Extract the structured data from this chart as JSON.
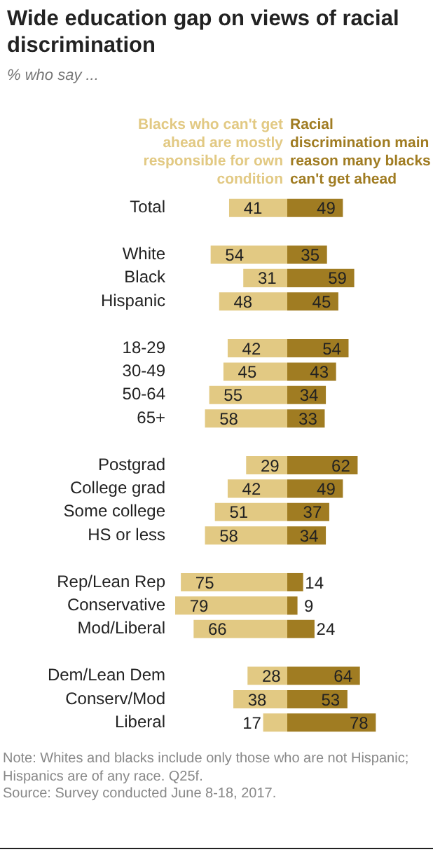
{
  "chart_data": [
    {
      "type": "bar",
      "orientation": "horizontal",
      "title": "Wide education gap on views of racial discrimination",
      "subtitle": "% who say ...",
      "categories": [
        "Total",
        null,
        "White",
        "Black",
        "Hispanic",
        null,
        "18-29",
        "30-49",
        "50-64",
        "65+",
        null,
        "Postgrad",
        "College grad",
        "Some college",
        "HS or less",
        null,
        "Rep/Lean Rep",
        "Conservative",
        "Mod/Liberal",
        null,
        "Dem/Lean Dem",
        "Conserv/Mod",
        "Liberal"
      ],
      "series": [
        {
          "name": "Blacks who can't get ahead are mostly responsible for own condition",
          "color": "#e2c983",
          "values": [
            41,
            null,
            54,
            31,
            48,
            null,
            42,
            45,
            55,
            58,
            null,
            29,
            42,
            51,
            58,
            null,
            75,
            79,
            66,
            null,
            28,
            38,
            17
          ]
        }
      ],
      "xlim": [
        80,
        0
      ],
      "tick_labels": "y",
      "legend": false,
      "data_labels": true,
      "annotations": [
        "Note: Whites and blacks include only those who are not Hispanic; Hispanics are of any race. Q25f.",
        "Source: Survey conducted June 8-18, 2017."
      ]
    },
    {
      "type": "bar",
      "orientation": "horizontal",
      "categories": [
        null,
        null,
        null,
        null,
        null,
        null,
        null,
        null,
        null,
        null,
        null,
        null,
        null,
        null,
        null,
        null,
        null,
        null,
        null,
        null,
        null,
        null,
        null
      ],
      "series": [
        {
          "name": "Racial discrimination main reason many blacks can't get ahead",
          "color": "#a07c22",
          "values": [
            49,
            null,
            35,
            59,
            45,
            null,
            54,
            43,
            34,
            33,
            null,
            62,
            49,
            37,
            34,
            null,
            14,
            9,
            24,
            null,
            64,
            53,
            78
          ]
        }
      ],
      "tick_labels": false,
      "legend": false,
      "data_labels": true
    }
  ]
}
